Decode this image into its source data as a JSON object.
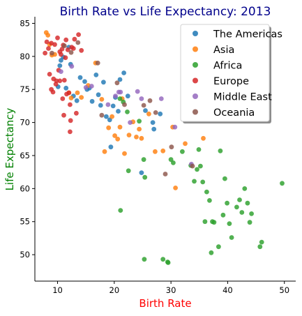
{
  "chart_data": {
    "type": "scatter",
    "title": "Birth Rate vs Life Expectancy: 2013",
    "xlabel": "Birth Rate",
    "ylabel": "Life Expectancy",
    "xlim": [
      6,
      52
    ],
    "ylim": [
      46,
      86
    ],
    "xticks": [
      10,
      20,
      30,
      40,
      50
    ],
    "yticks": [
      50,
      55,
      60,
      65,
      70,
      75,
      80,
      85
    ],
    "grid": false,
    "legend_position": "top-right",
    "colors": {
      "title": "#00008b",
      "xlabel": "#ff0000",
      "ylabel": "#008000",
      "The Americas": "#1f77b4",
      "Asia": "#ff7f0e",
      "Africa": "#2ca02c",
      "Europe": "#d62728",
      "Middle East": "#9467bd",
      "Oceania": "#8c564b"
    },
    "series": [
      {
        "name": "The Americas",
        "x": [
          10.1,
          10.4,
          10.6,
          11.0,
          11.5,
          12.0,
          12.3,
          12.8,
          13.4,
          14.0,
          14.8,
          15.2,
          15.6,
          16.1,
          16.8,
          17.2,
          17.6,
          18.1,
          18.6,
          19.4,
          19.8,
          20.2,
          21.0,
          21.7,
          22.4,
          26.8,
          28.1,
          19.2,
          20.7,
          24.8,
          25.5,
          27.0
        ],
        "y": [
          75.4,
          78.6,
          79.4,
          79.9,
          75.2,
          81.4,
          78.8,
          74.0,
          73.3,
          76.8,
          76.2,
          75.0,
          75.2,
          73.2,
          77.2,
          74.2,
          72.6,
          76.1,
          70.9,
          66.3,
          72.5,
          73.8,
          76.5,
          77.5,
          74.0,
          70.0,
          71.3,
          70.4,
          71.7,
          62.4,
          71.8,
          69.0
        ]
      },
      {
        "name": "Asia",
        "x": [
          8.0,
          8.3,
          8.6,
          9.0,
          9.5,
          12.0,
          12.4,
          13.5,
          14.2,
          15.4,
          16.7,
          17.8,
          18.3,
          19.0,
          19.6,
          20.1,
          20.6,
          21.0,
          21.4,
          21.8,
          22.6,
          23.3,
          23.9,
          24.4,
          24.8,
          26.1,
          27.2,
          28.6,
          30.3,
          32.5,
          35.7,
          30.8
        ],
        "y": [
          83.6,
          83.2,
          81.8,
          80.2,
          80.3,
          74.5,
          73.7,
          74.5,
          73.8,
          75.6,
          79.0,
          73.5,
          65.6,
          69.2,
          70.9,
          68.0,
          67.5,
          69.3,
          73.6,
          65.3,
          68.1,
          70.1,
          67.8,
          69.0,
          67.6,
          71.3,
          65.6,
          65.7,
          69.3,
          66.8,
          67.6,
          60.1
        ]
      },
      {
        "name": "Africa",
        "x": [
          21.0,
          21.6,
          22.3,
          24.4,
          25.2,
          25.4,
          28.6,
          29.5,
          30.0,
          30.4,
          32.0,
          33.5,
          34.1,
          34.6,
          34.9,
          35.2,
          35.6,
          36.0,
          36.3,
          36.8,
          37.1,
          37.3,
          37.6,
          38.4,
          38.7,
          39.2,
          39.5,
          39.9,
          40.3,
          40.7,
          41.6,
          42.1,
          42.5,
          43.0,
          43.5,
          43.9,
          44.2,
          45.7,
          46.0,
          49.6,
          21.1,
          22.5,
          25.3,
          29.4
        ],
        "y": [
          73.6,
          73.1,
          71.6,
          70.2,
          64.4,
          61.7,
          49.3,
          48.8,
          64.4,
          63.9,
          65.6,
          63.5,
          61.1,
          62.9,
          65.9,
          63.4,
          61.0,
          55.0,
          59.5,
          58.2,
          50.3,
          55.0,
          54.9,
          51.2,
          65.7,
          56.0,
          61.5,
          57.8,
          54.7,
          52.6,
          57.2,
          58.3,
          56.4,
          60.0,
          57.8,
          54.9,
          56.2,
          51.2,
          51.9,
          60.8,
          56.7,
          62.7,
          49.3,
          48.9
        ]
      },
      {
        "name": "Europe",
        "x": [
          7.8,
          8.1,
          8.4,
          8.6,
          8.9,
          9.2,
          9.5,
          9.8,
          10.0,
          10.2,
          10.4,
          10.6,
          10.8,
          11.0,
          11.2,
          11.4,
          11.6,
          11.8,
          12.0,
          12.2,
          12.5,
          12.8,
          13.0,
          13.3,
          13.7,
          14.2,
          9.3,
          10.4,
          11.1,
          12.3,
          8.9,
          9.7,
          10.9,
          11.5,
          12.2
        ],
        "y": [
          80.5,
          82.2,
          81.2,
          77.3,
          75.0,
          74.6,
          81.8,
          76.3,
          82.8,
          77.9,
          80.7,
          80.3,
          81.1,
          81.7,
          76.4,
          79.8,
          74.3,
          81.0,
          74.5,
          68.6,
          81.4,
          81.2,
          82.6,
          71.4,
          83.3,
          80.9,
          76.6,
          76.3,
          71.1,
          70.3,
          82.0,
          75.8,
          73.6,
          82.5,
          72.7
        ]
      },
      {
        "name": "Middle East",
        "x": [
          10.6,
          12.5,
          15.0,
          16.0,
          20.2,
          20.8,
          21.1,
          24.1,
          24.8,
          28.3,
          30.7,
          33.6,
          22.8,
          18.9
        ],
        "y": [
          77.7,
          78.5,
          75.3,
          75.5,
          74.0,
          74.6,
          74.6,
          74.7,
          73.6,
          73.6,
          69.3,
          63.7,
          70.0,
          72.7
        ]
      },
      {
        "name": "Oceania",
        "x": [
          9.0,
          11.2,
          12.4,
          13.6,
          17.1,
          17.8,
          20.5,
          21.8,
          25.2,
          26.3,
          27.3,
          29.0,
          30.1,
          33.8
        ],
        "y": [
          80.5,
          81.6,
          80.6,
          82.1,
          79.0,
          71.1,
          76.0,
          72.7,
          72.6,
          73.3,
          71.5,
          62.2,
          66.3,
          63.4
        ]
      }
    ]
  }
}
